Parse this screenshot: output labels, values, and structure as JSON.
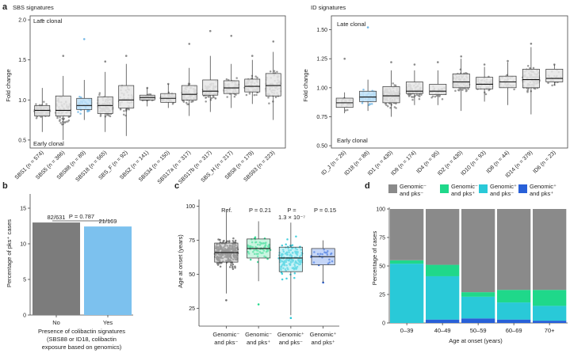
{
  "colors": {
    "grey": "#8a8a8a",
    "blue": "#74b8e6",
    "dark": "#3b3b3b",
    "teal": "#29c9d8",
    "green": "#1fd88a",
    "royal": "#2860d8",
    "bar_blue": "#7cc1ee"
  },
  "panel_a": {
    "label": "a",
    "sbs": {
      "title": "SBS signatures",
      "late": "Late clonal",
      "early": "Early clonal",
      "ylabel": "Fold change",
      "ticks": [
        "0.5",
        "1.0",
        "1.5",
        "2.0"
      ],
      "chart_data": {
        "type": "boxplot",
        "ylim": [
          0.4,
          2.05
        ],
        "categories": [
          "SBS1 (n = 574)",
          "SBS5 (n = 386)",
          "SBS88 (n = 89)",
          "SBS18 (n = 565)",
          "SBS_F (n = 92)",
          "SBS2 (n = 141)",
          "SBS34 (n = 150)",
          "SBS17a (n = 317)",
          "SBS17b (n = 317)",
          "SBS_H (n = 217)",
          "SBS8 (n = 179)",
          "SBS93 (n = 223)"
        ],
        "label_parts": [
          [
            "SBS1 (",
            ")n = 574"
          ],
          [
            "SBS5 (",
            "n = 386",
            ")"
          ]
        ],
        "medians": [
          0.87,
          0.87,
          0.93,
          0.93,
          1.0,
          1.03,
          1.02,
          1.07,
          1.11,
          1.15,
          1.17,
          1.18
        ],
        "q1": [
          0.8,
          0.8,
          0.88,
          0.83,
          0.9,
          1.0,
          0.97,
          1.0,
          1.06,
          1.08,
          1.1,
          1.05
        ],
        "q3": [
          0.93,
          1.05,
          1.02,
          1.04,
          1.18,
          1.06,
          1.08,
          1.18,
          1.25,
          1.24,
          1.26,
          1.33
        ],
        "wlo": [
          0.6,
          0.5,
          0.75,
          0.6,
          0.55,
          0.92,
          0.9,
          0.8,
          0.85,
          0.9,
          0.95,
          0.75
        ],
        "whi": [
          1.15,
          1.3,
          1.25,
          1.35,
          1.45,
          1.15,
          1.2,
          1.4,
          1.55,
          1.45,
          1.5,
          1.6
        ],
        "highlight_index": 2,
        "max_points": [
          2.0,
          1.55,
          1.76,
          1.48,
          1.55,
          1.15,
          1.2,
          1.7,
          1.86,
          1.8,
          1.55,
          1.73
        ]
      }
    },
    "id": {
      "title": "ID signatures",
      "late": "Late clonal",
      "early": "Early clonal",
      "ylabel": "Fold change",
      "ticks": [
        "0.50",
        "0.75",
        "1.00",
        "1.25",
        "1.50"
      ],
      "chart_data": {
        "type": "boxplot",
        "ylim": [
          0.48,
          1.62
        ],
        "categories": [
          "ID_J (n = 26)",
          "ID18 (n = 88)",
          "ID1 (n = 430)",
          "ID9 (n = 174)",
          "ID4 (n = 95)",
          "ID2 (n = 430)",
          "ID10 (n = 93)",
          "ID8 (n = 44)",
          "ID14 (n = 379)",
          "ID6 (n = 23)"
        ],
        "medians": [
          0.87,
          0.92,
          0.93,
          0.97,
          0.97,
          1.05,
          1.03,
          1.05,
          1.07,
          1.08
        ],
        "q1": [
          0.83,
          0.88,
          0.87,
          0.95,
          0.94,
          1.0,
          0.99,
          1.0,
          1.0,
          1.05
        ],
        "q3": [
          0.91,
          0.97,
          1.01,
          1.05,
          1.03,
          1.12,
          1.09,
          1.1,
          1.16,
          1.16
        ],
        "wlo": [
          0.78,
          0.8,
          0.75,
          0.85,
          0.85,
          0.8,
          0.88,
          0.85,
          0.77,
          1.02
        ],
        "whi": [
          0.96,
          1.07,
          1.15,
          1.15,
          1.15,
          1.25,
          1.18,
          1.22,
          1.35,
          1.2
        ],
        "highlight_index": 1,
        "max_points": [
          1.25,
          1.52,
          1.22,
          1.2,
          1.22,
          1.27,
          1.2,
          1.23,
          1.38,
          1.2
        ]
      }
    }
  },
  "panel_b": {
    "label": "b",
    "ylabel": "Percentage of pks⁺ cases",
    "ticks": [
      "0",
      "5",
      "10",
      "15"
    ],
    "p_value": "P = 0.787",
    "xlabel_line1": "Presence of colibactin signatures",
    "xlabel_line2": "(SBS88 or ID18, colibactin",
    "xlabel_line3": "exposure based on genomics)",
    "chart_data": {
      "type": "bar",
      "categories": [
        "No",
        "Yes"
      ],
      "values": [
        12.99,
        12.43
      ],
      "ylim": [
        0,
        17
      ],
      "bar_labels": [
        "82/631",
        "21/169"
      ]
    }
  },
  "panel_c": {
    "label": "c",
    "ylabel": "Age at onset (years)",
    "ticks": [
      "25",
      "50",
      "75",
      "100"
    ],
    "annotations": [
      "Ref.",
      "P = 0.21",
      "P =",
      "1.3 × 10⁻⁷",
      "P = 0.15"
    ],
    "xlabels": [
      [
        "Genomic⁻",
        "and pks⁻"
      ],
      [
        "Genomic⁻",
        "and pks⁺"
      ],
      [
        "Genomic⁺",
        "and pks⁻"
      ],
      [
        "Genomic⁺",
        "and pks⁺"
      ]
    ],
    "chart_data": {
      "type": "boxplot",
      "ylim": [
        12,
        105
      ],
      "categories": [
        "Genomic- and pks-",
        "Genomic- and pks+",
        "Genomic+ and pks-",
        "Genomic+ and pks+"
      ],
      "medians": [
        66,
        69,
        62,
        63
      ],
      "q1": [
        59,
        62,
        52,
        57
      ],
      "q3": [
        73,
        76,
        70,
        69
      ],
      "wlo": [
        36,
        45,
        20,
        44
      ],
      "whi": [
        96,
        89,
        88,
        75
      ],
      "min_points": [
        31,
        28,
        18,
        44
      ]
    }
  },
  "panel_d": {
    "label": "d",
    "ylabel": "Percentage of cases",
    "xlabel": "Age at onset (years)",
    "ticks": [
      "0",
      "25",
      "50",
      "75",
      "100"
    ],
    "legend": [
      "Genomic⁻ and pks⁻",
      "Genomic⁻ and pks⁺",
      "Genomic⁺ and pks⁻",
      "Genomic⁺ and pks⁺"
    ],
    "legend_lines": [
      [
        "Genomic⁻",
        "and pks⁻"
      ],
      [
        "Genomic⁻",
        "and pks⁺"
      ],
      [
        "Genomic⁺",
        "and pks⁻"
      ],
      [
        "Genomic⁺",
        "and pks⁺"
      ]
    ],
    "chart_data": {
      "type": "bar",
      "stacked": true,
      "ylim": [
        0,
        100
      ],
      "categories": [
        "0–39",
        "40–49",
        "50–59",
        "60–69",
        "70+"
      ],
      "series": [
        {
          "name": "Genomic+ and pks+",
          "values": [
            0,
            3,
            4,
            3,
            2
          ]
        },
        {
          "name": "Genomic+ and pks-",
          "values": [
            52,
            38,
            19,
            15,
            13
          ]
        },
        {
          "name": "Genomic- and pks+",
          "values": [
            3,
            10,
            4,
            11,
            14
          ]
        },
        {
          "name": "Genomic- and pks-",
          "values": [
            45,
            49,
            73,
            71,
            71
          ]
        }
      ]
    }
  }
}
